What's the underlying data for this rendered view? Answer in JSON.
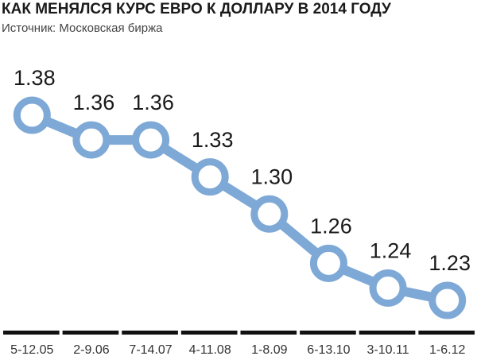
{
  "chart_data": {
    "type": "line",
    "title": "КАК МЕНЯЛСЯ КУРС ЕВРО К ДОЛЛАРУ В 2014 ГОДУ",
    "subtitle": "Источник: Московская биржа",
    "categories": [
      "5-12.05",
      "2-9.06",
      "7-14.07",
      "4-11.08",
      "1-8.09",
      "6-13.10",
      "3-10.11",
      "1-6.12"
    ],
    "values": [
      1.38,
      1.36,
      1.36,
      1.33,
      1.3,
      1.26,
      1.24,
      1.23
    ],
    "value_labels": [
      "1.38",
      "1.36",
      "1.36",
      "1.33",
      "1.30",
      "1.26",
      "1.24",
      "1.23"
    ],
    "color": "#7ea9d6"
  }
}
